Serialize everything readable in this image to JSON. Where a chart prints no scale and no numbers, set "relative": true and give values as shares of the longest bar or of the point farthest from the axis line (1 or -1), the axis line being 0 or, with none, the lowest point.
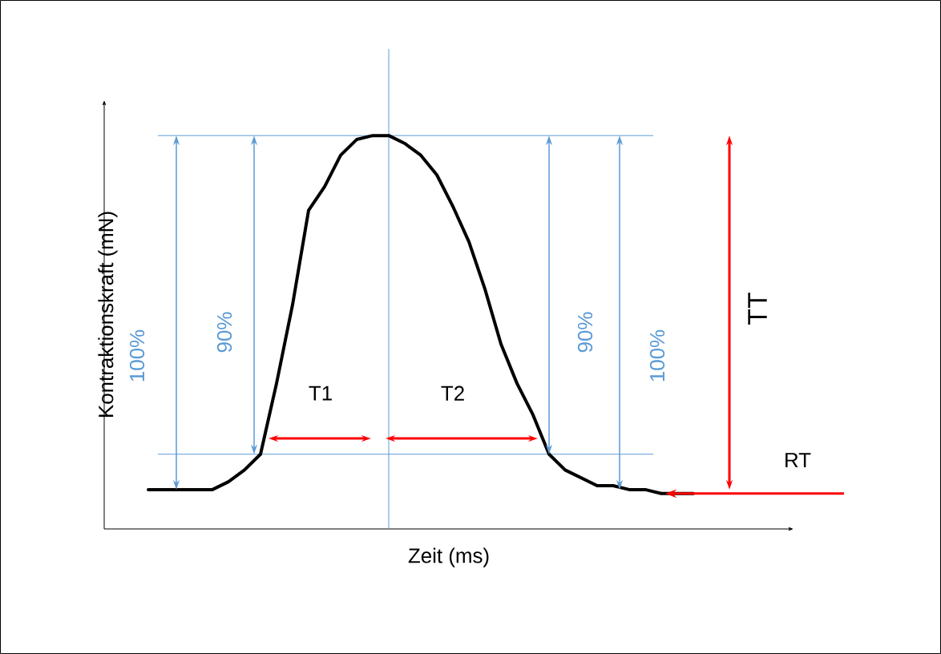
{
  "chart_data": {
    "type": "line",
    "relative": true,
    "xlabel": "Zeit (ms)",
    "ylabel": "Kontraktionskraft (mN)",
    "categories": [
      null,
      null,
      null,
      null,
      null,
      null,
      null,
      null,
      null,
      null,
      null,
      null,
      null,
      null,
      null,
      null,
      null,
      null,
      null,
      null,
      null,
      null,
      null,
      null,
      null,
      null,
      null,
      null,
      null,
      null,
      null,
      null,
      null,
      null,
      null
    ],
    "series": [
      {
        "color": "#000000",
        "values": [
          0.1,
          0.1,
          0.1,
          0.1,
          0.1,
          0.12,
          0.15,
          0.19,
          0.37,
          0.57,
          0.81,
          0.87,
          0.95,
          0.99,
          1,
          1,
          0.98,
          0.95,
          0.9,
          0.82,
          0.73,
          0.61,
          0.47,
          0.37,
          0.29,
          0.19,
          0.15,
          0.13,
          0.11,
          0.11,
          0.1,
          0.1,
          0.09,
          0.09,
          0.09
        ]
      }
    ],
    "ref_lines": [
      {
        "axis": "y",
        "value": 1,
        "color": "#5b9bd5"
      },
      {
        "axis": "y",
        "value": 0.19,
        "color": "#5b9bd5"
      }
    ],
    "annotations": [
      "100%",
      "90%",
      "T1",
      "T2",
      "90%",
      "100%",
      "TT",
      "RT"
    ]
  }
}
